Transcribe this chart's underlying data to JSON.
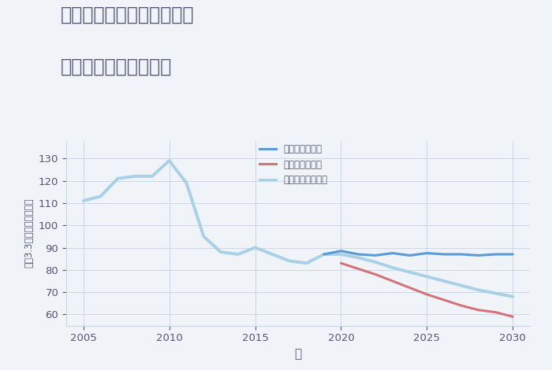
{
  "title_line1": "兵庫県豊岡市日高町祢布の",
  "title_line2": "中古戸建ての価格推移",
  "xlabel": "年",
  "ylabel": "坪（3.3㎡）単価（万円）",
  "background_color": "#f0f4f8",
  "plot_bg_color": "#f0f4f8",
  "xlim": [
    2004,
    2031
  ],
  "ylim": [
    55,
    138
  ],
  "xticks": [
    2005,
    2010,
    2015,
    2020,
    2025,
    2030
  ],
  "yticks": [
    60,
    70,
    80,
    90,
    100,
    110,
    120,
    130
  ],
  "good_scenario": {
    "label": "グッドシナリオ",
    "color": "#5b9bd5",
    "linewidth": 2.2,
    "x": [
      2019,
      2020,
      2021,
      2022,
      2023,
      2024,
      2025,
      2026,
      2027,
      2028,
      2029,
      2030
    ],
    "y": [
      87.0,
      88.5,
      87.0,
      86.5,
      87.5,
      86.5,
      87.5,
      87.0,
      87.0,
      86.5,
      87.0,
      87.0
    ]
  },
  "bad_scenario": {
    "label": "バッドシナリオ",
    "color": "#d4737a",
    "linewidth": 2.2,
    "x": [
      2020,
      2021,
      2022,
      2023,
      2024,
      2025,
      2026,
      2027,
      2028,
      2029,
      2030
    ],
    "y": [
      83.0,
      80.5,
      78.0,
      75.0,
      72.0,
      69.0,
      66.5,
      64.0,
      62.0,
      61.0,
      59.0
    ]
  },
  "normal_scenario_hist": {
    "label": "ノーマルシナリオ",
    "color": "#a8d0e6",
    "linewidth": 2.8,
    "x": [
      2005,
      2006,
      2007,
      2008,
      2009,
      2010,
      2011,
      2012,
      2013,
      2014,
      2015,
      2016,
      2017,
      2018,
      2019,
      2020
    ],
    "y": [
      111,
      113,
      121,
      122,
      122,
      129,
      119,
      95,
      88,
      87,
      90,
      87,
      84,
      83,
      87,
      87
    ]
  },
  "normal_scenario_future": {
    "color": "#a8d0e6",
    "linewidth": 2.8,
    "x": [
      2020,
      2021,
      2022,
      2023,
      2024,
      2025,
      2026,
      2027,
      2028,
      2029,
      2030
    ],
    "y": [
      87.0,
      85.5,
      83.5,
      81.0,
      79.0,
      77.0,
      75.0,
      73.0,
      71.0,
      69.5,
      68.0
    ]
  },
  "title_color": "#555577",
  "tick_color": "#555577",
  "label_color": "#555577",
  "grid_color": "#c5d8ea",
  "legend_label_color": "#555577"
}
